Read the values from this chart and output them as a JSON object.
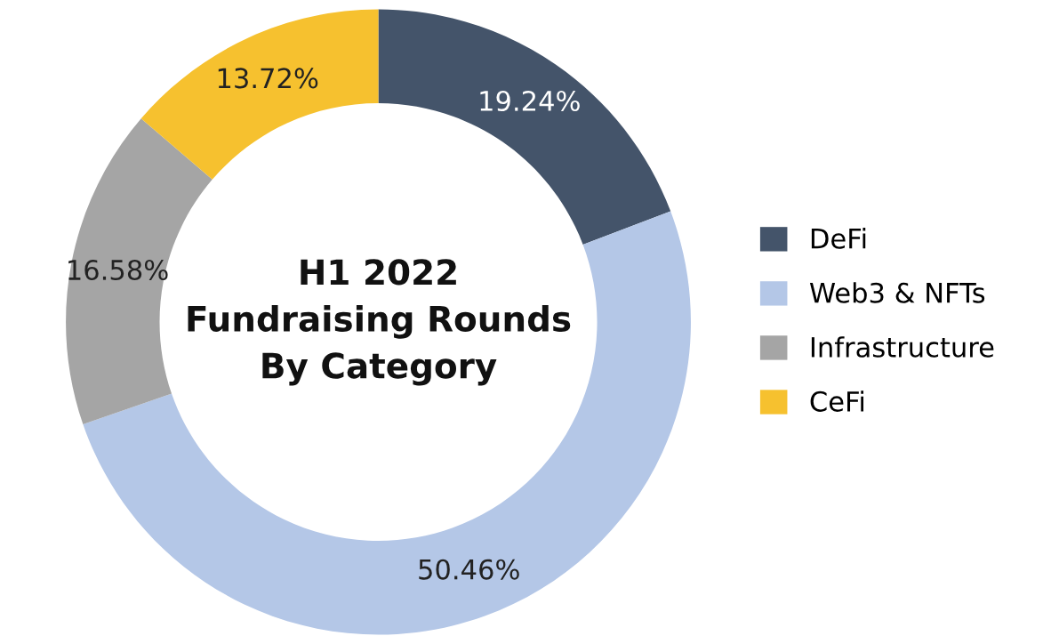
{
  "chart_data": {
    "type": "donut",
    "title": "H1 2022\nFundraising Rounds\nBy Category",
    "categories": [
      "DeFi",
      "Web3 & NFTs",
      "Infrastructure",
      "CeFi"
    ],
    "values": [
      19.24,
      50.46,
      16.58,
      13.72
    ],
    "value_labels": [
      "19.24%",
      "50.46%",
      "16.58%",
      "13.72%"
    ],
    "colors": [
      "#44546a",
      "#b4c7e7",
      "#a5a5a5",
      "#f6c12f"
    ],
    "legend": "right"
  }
}
